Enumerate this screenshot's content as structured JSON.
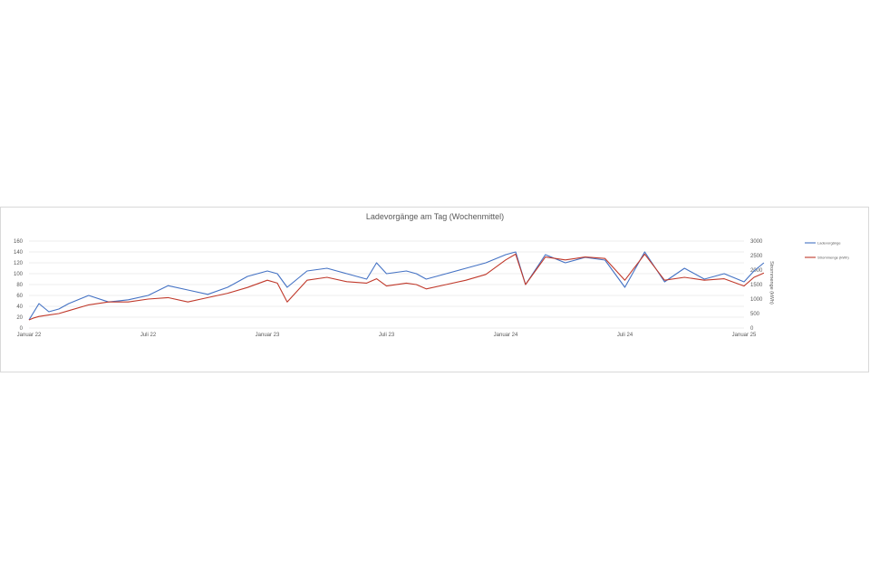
{
  "chart_data": {
    "type": "line",
    "title": "Ladevorgänge am Tag (Wochenmittel)",
    "xlabel": "",
    "ylabel": "",
    "y2label": "Strommenge (kWh)",
    "x_tick_labels": [
      "Januar 22",
      "Juli 22",
      "Januar 23",
      "Juli 23",
      "Januar 24",
      "Juli 24",
      "Januar 25"
    ],
    "y_ticks": [
      0,
      20,
      40,
      60,
      80,
      100,
      120,
      140,
      160
    ],
    "y2_ticks": [
      0,
      500,
      1000,
      1500,
      2000,
      2500,
      3000
    ],
    "ylim": [
      0,
      160
    ],
    "y2lim": [
      0,
      3000
    ],
    "grid": true,
    "legend_position": "right",
    "colors": {
      "ladevorgaenge": "#4472c4",
      "strommenge": "#c0392b"
    },
    "series": [
      {
        "name": "Ladevorgänge",
        "axis": "left",
        "color": "#4472c4",
        "x": [
          0,
          0.25,
          0.5,
          1,
          1.5,
          2,
          3,
          4,
          5,
          6,
          7,
          8,
          9,
          10,
          11,
          12,
          12.5,
          13,
          14,
          15,
          16,
          17,
          17.5,
          18,
          19,
          19.5,
          20,
          21,
          22,
          23,
          24,
          24.5,
          25,
          26,
          27,
          28,
          29,
          30,
          31,
          32,
          33,
          34,
          35,
          36,
          36.5,
          37
        ],
        "values": [
          15,
          30,
          45,
          30,
          35,
          45,
          60,
          48,
          52,
          60,
          78,
          70,
          62,
          75,
          95,
          105,
          100,
          75,
          105,
          110,
          100,
          90,
          120,
          100,
          105,
          100,
          90,
          100,
          110,
          120,
          135,
          140,
          80,
          135,
          120,
          130,
          125,
          75,
          140,
          85,
          110,
          90,
          100,
          85,
          105,
          120
        ]
      },
      {
        "name": "Strommenge (kWh)",
        "axis": "right",
        "color": "#c0392b",
        "x": [
          0,
          0.25,
          0.5,
          1,
          1.5,
          2,
          3,
          4,
          5,
          6,
          7,
          8,
          9,
          10,
          11,
          12,
          12.5,
          13,
          14,
          15,
          16,
          17,
          17.5,
          18,
          19,
          19.5,
          20,
          21,
          22,
          23,
          24,
          24.5,
          25,
          26,
          27,
          28,
          29,
          30,
          31,
          32,
          33,
          34,
          35,
          36,
          36.5,
          37
        ],
        "values": [
          280,
          350,
          400,
          450,
          500,
          600,
          800,
          900,
          900,
          1000,
          1050,
          900,
          1050,
          1200,
          1400,
          1650,
          1550,
          900,
          1650,
          1750,
          1600,
          1550,
          1700,
          1450,
          1550,
          1500,
          1350,
          1500,
          1650,
          1850,
          2350,
          2550,
          1500,
          2450,
          2350,
          2450,
          2400,
          1650,
          2550,
          1650,
          1750,
          1650,
          1700,
          1450,
          1750,
          1900
        ]
      }
    ],
    "legend": [
      "Ladevorgänge",
      "Strommenge (kWh)"
    ]
  }
}
